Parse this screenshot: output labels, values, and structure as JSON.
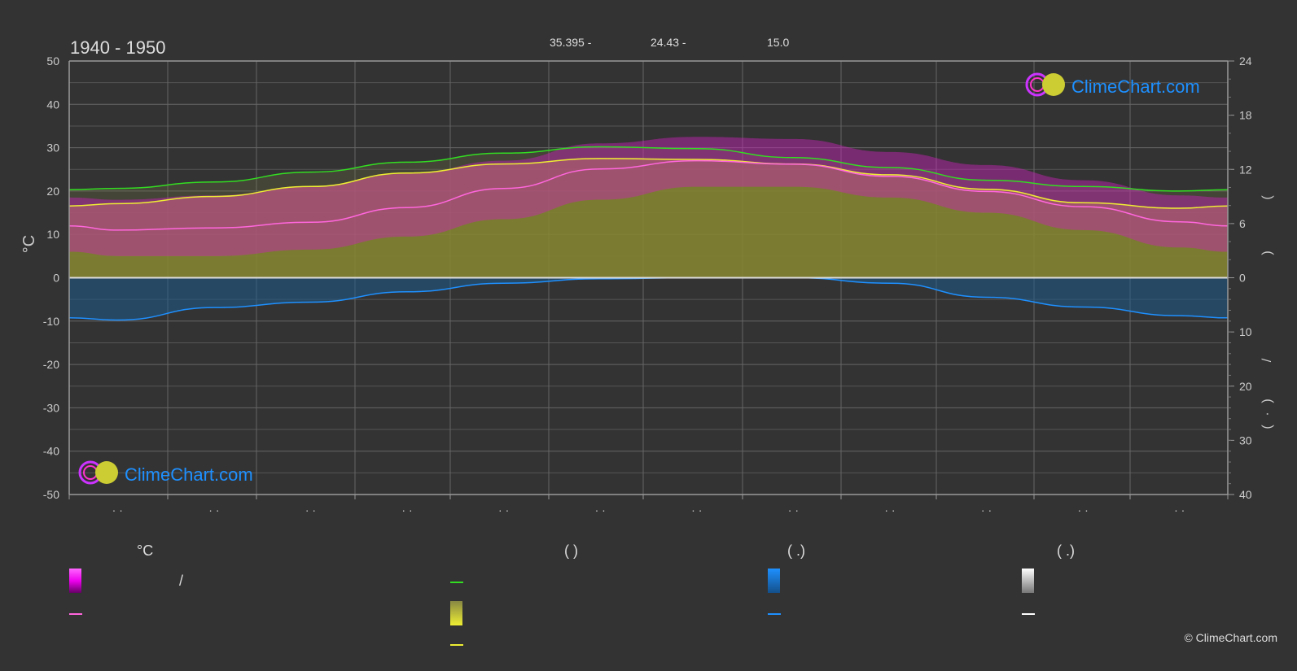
{
  "title": "1940 - 1950",
  "coords": {
    "lat": "35.395 -",
    "lon": "24.43 -",
    "elev": "15.0"
  },
  "brand": {
    "logo_text": "ClimeChart.com",
    "copyright": "© ClimeChart.com"
  },
  "legend": {
    "temp_head": "°C",
    "daylight_head": "(          )",
    "rain_head": "(   .)",
    "snow_head": "(   .)",
    "temp_slash": "/",
    "colors": {
      "magenta": "#ff00ff",
      "pink": "#ff66dd",
      "green": "#33dd22",
      "yellow": "#eeee33",
      "blue": "#1e90ff",
      "white": "#ffffff"
    }
  },
  "chart_data": {
    "type": "area",
    "title": "1940 - 1950",
    "ylabel_left": "°C",
    "ylim_left": [
      -50,
      50
    ],
    "yticks_left": [
      50,
      40,
      30,
      20,
      10,
      0,
      -10,
      -20,
      -30,
      -40,
      -50
    ],
    "ylim_right_top": [
      0,
      24
    ],
    "yticks_right_top": [
      24,
      18,
      12,
      6,
      0
    ],
    "ylim_right_bottom": [
      0,
      40
    ],
    "yticks_right_bottom": [
      10,
      20,
      30,
      40
    ],
    "x_month_index": [
      0.5,
      1.5,
      2.5,
      3.5,
      4.5,
      5.5,
      6.5,
      7.5,
      8.5,
      9.5,
      10.5,
      11.5
    ],
    "month_ticks": [
      "· ·",
      "· ·",
      "· ·",
      "· ·",
      "· ·",
      "· ·",
      "· ·",
      "· ·",
      "· ·",
      "· ·",
      "· ·",
      "· ·"
    ],
    "grid": true,
    "series": [
      {
        "name": "",
        "role": "daylight",
        "color": "#33dd22",
        "axis": "right_top",
        "values": [
          9.9,
          10.6,
          11.7,
          12.8,
          13.8,
          14.5,
          14.3,
          13.3,
          12.2,
          10.8,
          10.1,
          9.6
        ]
      },
      {
        "name": "",
        "role": "sunshine",
        "color": "#eeee33",
        "axis": "right_top",
        "values": [
          8.2,
          9.0,
          10.1,
          11.6,
          12.6,
          13.2,
          13.1,
          12.6,
          11.4,
          9.8,
          8.3,
          7.7
        ]
      },
      {
        "name": "",
        "role": "mean_temperature",
        "color": "#ff66dd",
        "axis": "left",
        "values": [
          11.0,
          11.5,
          12.8,
          16.2,
          20.6,
          25.1,
          27.0,
          26.2,
          23.4,
          19.9,
          16.4,
          12.9
        ]
      },
      {
        "name": "",
        "role": "max_temperature",
        "color": "#ff00ff",
        "axis": "left",
        "values": [
          18.0,
          19.0,
          21.0,
          24.0,
          27.0,
          31.0,
          32.5,
          32.0,
          29.0,
          26.0,
          22.5,
          19.0
        ]
      },
      {
        "name": "",
        "role": "min_temperature",
        "color": "#ff66dd",
        "axis": "left",
        "values": [
          5.0,
          5.0,
          6.5,
          9.5,
          13.5,
          18.0,
          21.0,
          21.0,
          18.5,
          15.0,
          11.0,
          7.0
        ]
      },
      {
        "name": "",
        "role": "precipitation",
        "color": "#1e90ff",
        "axis": "right_bottom",
        "values": [
          7.8,
          5.5,
          4.5,
          2.6,
          1.0,
          0.2,
          0.0,
          0.0,
          1.0,
          3.6,
          5.4,
          7.0
        ]
      }
    ]
  }
}
